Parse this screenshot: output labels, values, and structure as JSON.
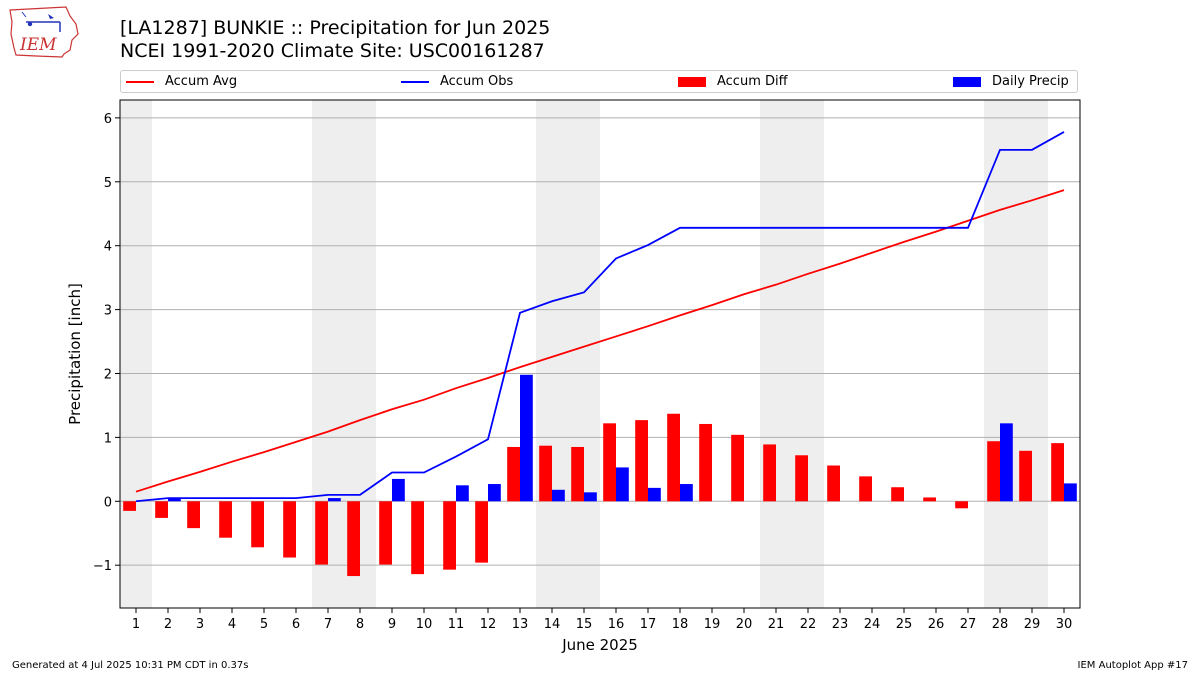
{
  "title_line1": "[LA1287] BUNKIE :: Precipitation for Jun 2025",
  "title_line2": "NCEI 1991-2020 Climate Site: USC00161287",
  "logo_text": "IEM",
  "footer_left": "Generated at 4 Jul 2025 10:31 PM CDT in 0.37s",
  "footer_right": "IEM Autoplot App #17",
  "colors": {
    "accum_avg": "#ff0000",
    "accum_obs": "#0000ff",
    "accum_diff": "#ff0000",
    "daily_precip": "#0000ff",
    "weekend_shade": "#eeeeee",
    "grid": "#b0b0b0"
  },
  "chart_data": {
    "type": "bar",
    "xlabel": "June 2025",
    "ylabel": "Precipitation [inch]",
    "ylim": [
      -1.67,
      6.28
    ],
    "xlim": [
      0.5,
      30.5
    ],
    "yticks": [
      -1,
      0,
      1,
      2,
      3,
      4,
      5,
      6
    ],
    "ytick_labels": [
      "−1",
      "0",
      "1",
      "2",
      "3",
      "4",
      "5",
      "6"
    ],
    "grid": "horizontal",
    "legend_placement": "top",
    "shaded_days": [
      1,
      7,
      8,
      14,
      15,
      21,
      22,
      28,
      29
    ],
    "days": [
      1,
      2,
      3,
      4,
      5,
      6,
      7,
      8,
      9,
      10,
      11,
      12,
      13,
      14,
      15,
      16,
      17,
      18,
      19,
      20,
      21,
      22,
      23,
      24,
      25,
      26,
      27,
      28,
      29,
      30
    ],
    "series": [
      {
        "name": "Accum Avg",
        "kind": "line",
        "values": [
          0.15,
          0.31,
          0.46,
          0.62,
          0.77,
          0.93,
          1.09,
          1.27,
          1.44,
          1.59,
          1.77,
          1.93,
          2.1,
          2.26,
          2.42,
          2.58,
          2.74,
          2.91,
          3.07,
          3.24,
          3.39,
          3.56,
          3.72,
          3.89,
          4.06,
          4.22,
          4.39,
          4.56,
          4.71,
          4.87
        ]
      },
      {
        "name": "Accum Obs",
        "kind": "line",
        "values": [
          0.0,
          0.05,
          0.05,
          0.05,
          0.05,
          0.05,
          0.1,
          0.1,
          0.45,
          0.45,
          0.7,
          0.97,
          2.95,
          3.13,
          3.27,
          3.8,
          4.01,
          4.28,
          4.28,
          4.28,
          4.28,
          4.28,
          4.28,
          4.28,
          4.28,
          4.28,
          4.28,
          5.5,
          5.5,
          5.78
        ]
      },
      {
        "name": "Accum Diff",
        "kind": "bar",
        "values": [
          -0.15,
          -0.26,
          -0.42,
          -0.57,
          -0.72,
          -0.88,
          -0.99,
          -1.17,
          -0.99,
          -1.14,
          -1.07,
          -0.96,
          0.85,
          0.87,
          0.85,
          1.22,
          1.27,
          1.37,
          1.21,
          1.04,
          0.89,
          0.72,
          0.56,
          0.39,
          0.22,
          0.06,
          -0.11,
          0.94,
          0.79,
          0.91
        ]
      },
      {
        "name": "Daily Precip",
        "kind": "bar",
        "values": [
          0.0,
          0.05,
          0.0,
          0.0,
          0.0,
          0.0,
          0.05,
          0.0,
          0.35,
          0.0,
          0.25,
          0.27,
          1.98,
          0.18,
          0.14,
          0.53,
          0.21,
          0.27,
          0.0,
          0.0,
          0.0,
          0.0,
          0.0,
          0.0,
          0.0,
          0.0,
          0.0,
          1.22,
          0.0,
          0.28
        ]
      }
    ]
  }
}
